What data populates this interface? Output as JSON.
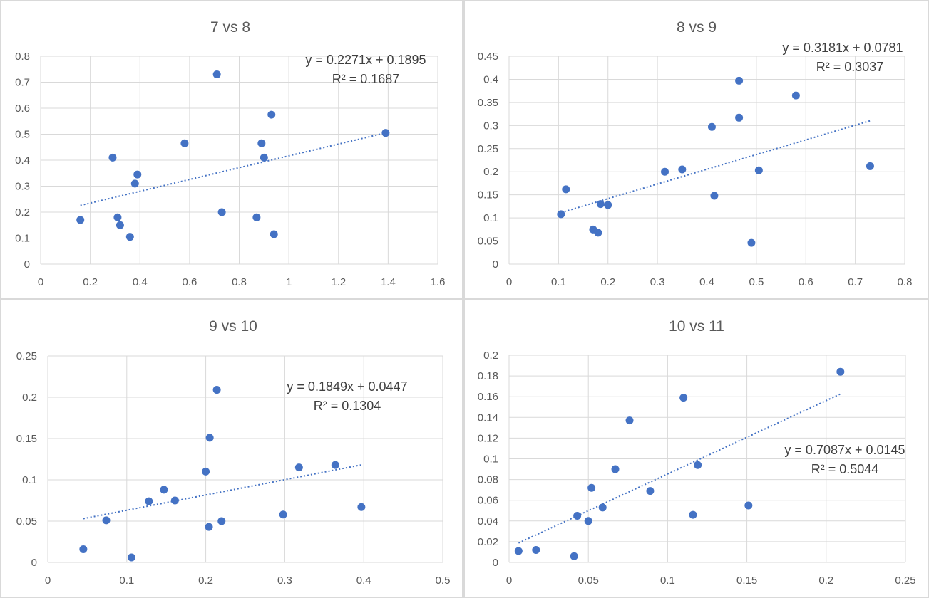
{
  "colors": {
    "marker": "#4472c4",
    "trendline": "#4472c4",
    "grid": "#d9d9d9",
    "text": "#595959"
  },
  "chart_data": [
    {
      "type": "scatter",
      "title": "7 vs 8",
      "xlim": [
        0,
        1.6
      ],
      "ylim": [
        0,
        0.8
      ],
      "x_ticks": [
        "0",
        "0.2",
        "0.4",
        "0.6",
        "0.8",
        "1",
        "1.2",
        "1.4",
        "1.6"
      ],
      "y_ticks": [
        "0",
        "0.1",
        "0.2",
        "0.3",
        "0.4",
        "0.5",
        "0.6",
        "0.7",
        "0.8"
      ],
      "grid": "both",
      "trendline": {
        "type": "linear",
        "slope": 0.2271,
        "intercept": 0.1895,
        "x_range": [
          0.16,
          1.39
        ],
        "equation": "y = 0.2271x + 0.1895",
        "r2": "R² = 0.1687"
      },
      "points": [
        [
          0.16,
          0.17
        ],
        [
          0.29,
          0.41
        ],
        [
          0.31,
          0.18
        ],
        [
          0.32,
          0.15
        ],
        [
          0.36,
          0.105
        ],
        [
          0.38,
          0.31
        ],
        [
          0.39,
          0.345
        ],
        [
          0.58,
          0.465
        ],
        [
          0.71,
          0.73
        ],
        [
          0.73,
          0.2
        ],
        [
          0.87,
          0.18
        ],
        [
          0.89,
          0.465
        ],
        [
          0.9,
          0.41
        ],
        [
          0.93,
          0.575
        ],
        [
          0.94,
          0.115
        ],
        [
          1.39,
          0.505
        ]
      ]
    },
    {
      "type": "scatter",
      "title": "8 vs 9",
      "xlim": [
        0,
        0.8
      ],
      "ylim": [
        0,
        0.45
      ],
      "x_ticks": [
        "0",
        "0.1",
        "0.2",
        "0.3",
        "0.4",
        "0.5",
        "0.6",
        "0.7",
        "0.8"
      ],
      "y_ticks": [
        "0",
        "0.05",
        "0.1",
        "0.15",
        "0.2",
        "0.25",
        "0.3",
        "0.35",
        "0.4",
        "0.45"
      ],
      "grid": "both",
      "trendline": {
        "type": "linear",
        "slope": 0.3181,
        "intercept": 0.0781,
        "x_range": [
          0.105,
          0.73
        ],
        "equation": "y = 0.3181x + 0.0781",
        "r2": "R² = 0.3037"
      },
      "points": [
        [
          0.105,
          0.108
        ],
        [
          0.115,
          0.162
        ],
        [
          0.17,
          0.075
        ],
        [
          0.18,
          0.068
        ],
        [
          0.185,
          0.13
        ],
        [
          0.2,
          0.128
        ],
        [
          0.315,
          0.2
        ],
        [
          0.35,
          0.205
        ],
        [
          0.41,
          0.297
        ],
        [
          0.415,
          0.148
        ],
        [
          0.465,
          0.397
        ],
        [
          0.465,
          0.317
        ],
        [
          0.49,
          0.046
        ],
        [
          0.505,
          0.203
        ],
        [
          0.58,
          0.365
        ],
        [
          0.73,
          0.212
        ]
      ]
    },
    {
      "type": "scatter",
      "title": "9 vs 10",
      "xlim": [
        0,
        0.5
      ],
      "ylim": [
        0,
        0.25
      ],
      "x_ticks": [
        "0",
        "0.1",
        "0.2",
        "0.3",
        "0.4",
        "0.5"
      ],
      "y_ticks": [
        "0",
        "0.05",
        "0.1",
        "0.15",
        "0.2",
        "0.25"
      ],
      "grid": "both",
      "trendline": {
        "type": "linear",
        "slope": 0.1849,
        "intercept": 0.0447,
        "x_range": [
          0.045,
          0.397
        ],
        "equation": "y = 0.1849x + 0.0447",
        "r2": "R² = 0.1304"
      },
      "points": [
        [
          0.045,
          0.016
        ],
        [
          0.074,
          0.051
        ],
        [
          0.106,
          0.006
        ],
        [
          0.128,
          0.074
        ],
        [
          0.147,
          0.088
        ],
        [
          0.161,
          0.075
        ],
        [
          0.2,
          0.11
        ],
        [
          0.204,
          0.043
        ],
        [
          0.205,
          0.151
        ],
        [
          0.214,
          0.209
        ],
        [
          0.22,
          0.05
        ],
        [
          0.298,
          0.058
        ],
        [
          0.318,
          0.115
        ],
        [
          0.364,
          0.118
        ],
        [
          0.397,
          0.067
        ]
      ]
    },
    {
      "type": "scatter",
      "title": "10 vs 11",
      "xlim": [
        0,
        0.25
      ],
      "ylim": [
        0,
        0.2
      ],
      "x_ticks": [
        "0",
        "0.05",
        "0.1",
        "0.15",
        "0.2",
        "0.25"
      ],
      "y_ticks": [
        "0",
        "0.02",
        "0.04",
        "0.06",
        "0.08",
        "0.1",
        "0.12",
        "0.14",
        "0.16",
        "0.18",
        "0.2"
      ],
      "grid": "both",
      "trendline": {
        "type": "linear",
        "slope": 0.7087,
        "intercept": 0.0145,
        "x_range": [
          0.006,
          0.209
        ],
        "equation": "y = 0.7087x + 0.0145",
        "r2": "R² = 0.5044"
      },
      "points": [
        [
          0.006,
          0.011
        ],
        [
          0.017,
          0.012
        ],
        [
          0.041,
          0.006
        ],
        [
          0.043,
          0.045
        ],
        [
          0.05,
          0.04
        ],
        [
          0.052,
          0.072
        ],
        [
          0.059,
          0.053
        ],
        [
          0.067,
          0.09
        ],
        [
          0.076,
          0.137
        ],
        [
          0.089,
          0.069
        ],
        [
          0.11,
          0.159
        ],
        [
          0.116,
          0.046
        ],
        [
          0.119,
          0.094
        ],
        [
          0.151,
          0.055
        ],
        [
          0.209,
          0.184
        ]
      ]
    }
  ]
}
